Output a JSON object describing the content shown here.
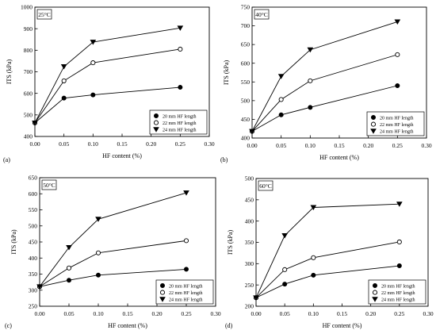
{
  "chart_data": [
    {
      "type": "line",
      "panel_label": "(a)",
      "temperature_label": "25°C",
      "xlabel": "HF content (%)",
      "ylabel": "ITS (kPa)",
      "xlim": [
        0,
        0.3
      ],
      "ylim": [
        400,
        1000
      ],
      "xticks": [
        "0.00",
        "0.05",
        "0.10",
        "0.15",
        "0.20",
        "0.25",
        "0.30"
      ],
      "yticks": [
        "400",
        "500",
        "600",
        "700",
        "800",
        "900",
        "1000"
      ],
      "legend_position": "bottom-right",
      "x": [
        0,
        0.05,
        0.1,
        0.25
      ],
      "series": [
        {
          "name": "20 mm HF length",
          "marker": "filled-circle",
          "values": [
            463,
            578,
            593,
            628
          ]
        },
        {
          "name": "22 mm HF length",
          "marker": "open-circle",
          "values": [
            463,
            658,
            742,
            805
          ]
        },
        {
          "name": "24 mm HF length",
          "marker": "filled-triangle-down",
          "values": [
            463,
            724,
            838,
            903
          ]
        }
      ]
    },
    {
      "type": "line",
      "panel_label": "(b)",
      "temperature_label": "40°C",
      "xlabel": "HF content (%)",
      "ylabel": "ITS (kPa)",
      "xlim": [
        0,
        0.3
      ],
      "ylim": [
        400,
        750
      ],
      "xticks": [
        "0.00",
        "0.05",
        "0.10",
        "0.15",
        "0.20",
        "0.25",
        "0.30"
      ],
      "yticks": [
        "400",
        "450",
        "500",
        "550",
        "600",
        "650",
        "700",
        "750"
      ],
      "legend_position": "bottom-right",
      "x": [
        0,
        0.05,
        0.1,
        0.25
      ],
      "series": [
        {
          "name": "20 mm HF length",
          "marker": "filled-circle",
          "values": [
            418,
            462,
            482,
            540
          ]
        },
        {
          "name": "22 mm HF length",
          "marker": "open-circle",
          "values": [
            418,
            503,
            553,
            623
          ]
        },
        {
          "name": "24 mm HF length",
          "marker": "filled-triangle-down",
          "values": [
            418,
            565,
            636,
            711
          ]
        }
      ]
    },
    {
      "type": "line",
      "panel_label": "(c)",
      "temperature_label": "50°C",
      "xlabel": "HF content (%)",
      "ylabel": "ITS (kPa)",
      "xlim": [
        0,
        0.3
      ],
      "ylim": [
        250,
        650
      ],
      "xticks": [
        "0.00",
        "0.05",
        "0.10",
        "0.15",
        "0.20",
        "0.25",
        "0.30"
      ],
      "yticks": [
        "250",
        "300",
        "350",
        "400",
        "450",
        "500",
        "550",
        "600",
        "650"
      ],
      "legend_position": "bottom-right",
      "x": [
        0,
        0.05,
        0.1,
        0.25
      ],
      "series": [
        {
          "name": "20 mm HF length",
          "marker": "filled-circle",
          "values": [
            311,
            331,
            347,
            365
          ]
        },
        {
          "name": "22 mm HF length",
          "marker": "open-circle",
          "values": [
            311,
            369,
            416,
            454
          ]
        },
        {
          "name": "24 mm HF length",
          "marker": "filled-triangle-down",
          "values": [
            311,
            433,
            521,
            603
          ]
        }
      ]
    },
    {
      "type": "line",
      "panel_label": "(d)",
      "temperature_label": "60°C",
      "xlabel": "HF content (%)",
      "ylabel": "ITS (kPa)",
      "xlim": [
        0,
        0.3
      ],
      "ylim": [
        200,
        500
      ],
      "xticks": [
        "0.00",
        "0.05",
        "0.10",
        "0.15",
        "0.20",
        "0.25",
        "0.30"
      ],
      "yticks": [
        "200",
        "250",
        "300",
        "350",
        "400",
        "450",
        "500"
      ],
      "legend_position": "bottom-right",
      "x": [
        0,
        0.05,
        0.1,
        0.25
      ],
      "series": [
        {
          "name": "20 mm HF length",
          "marker": "filled-circle",
          "values": [
            220,
            252,
            273,
            295
          ]
        },
        {
          "name": "22 mm HF length",
          "marker": "open-circle",
          "values": [
            220,
            286,
            314,
            351
          ]
        },
        {
          "name": "24 mm HF length",
          "marker": "filled-triangle-down",
          "values": [
            220,
            366,
            432,
            440
          ]
        }
      ]
    }
  ]
}
